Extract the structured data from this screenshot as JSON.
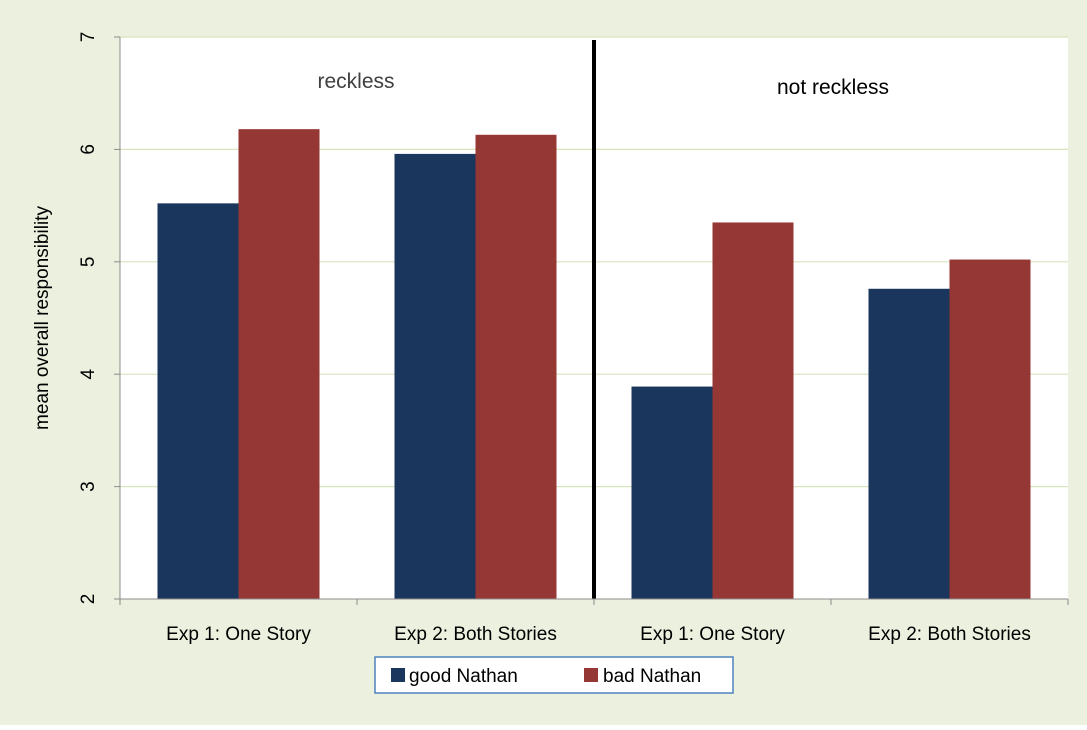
{
  "chart_data": {
    "type": "bar",
    "categories": [
      "Exp 1: One Story",
      "Exp 2: Both Stories",
      "Exp 1: One Story",
      "Exp 2: Both Stories"
    ],
    "series": [
      {
        "name": "good Nathan",
        "values": [
          5.52,
          5.96,
          3.89,
          4.76
        ]
      },
      {
        "name": "bad Nathan",
        "values": [
          6.18,
          6.13,
          5.35,
          5.02
        ]
      }
    ],
    "xlabel": "",
    "ylabel": "mean overall responsibility",
    "ylim": [
      2,
      7
    ],
    "yticks": [
      "2",
      "3",
      "4",
      "5",
      "6",
      "7"
    ],
    "grid": true,
    "legend_position": "bottom-center",
    "annotations": [
      "reckless",
      "not reckless"
    ],
    "divider_after_category_index": 1,
    "colors": {
      "good Nathan": "#1b365c",
      "bad Nathan": "#953735",
      "background": "#ebf1de",
      "gridline": "#d7e4bd",
      "legend_border": "#4f81bd",
      "divider": "#000000"
    }
  }
}
